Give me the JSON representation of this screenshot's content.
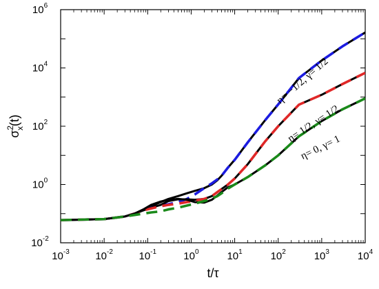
{
  "chart_data": {
    "type": "line",
    "xlabel": "t/τ",
    "ylabel": {
      "base": "σ",
      "sup": "2",
      "sub": "x",
      "suffix": "(t)"
    },
    "x_scale": "log",
    "y_scale": "log",
    "xlim": [
      0.001,
      10000
    ],
    "ylim": [
      0.01,
      1000000
    ],
    "x_ticks": [
      {
        "base": "10",
        "exp": "-3"
      },
      {
        "base": "10",
        "exp": "-2"
      },
      {
        "base": "10",
        "exp": "-1"
      },
      {
        "base": "10",
        "exp": "0"
      },
      {
        "base": "10",
        "exp": "1"
      },
      {
        "base": "10",
        "exp": "2"
      },
      {
        "base": "10",
        "exp": "3"
      },
      {
        "base": "10",
        "exp": "4"
      }
    ],
    "y_ticks": [
      {
        "base": "10",
        "exp": "-2"
      },
      {
        "base": "10",
        "exp": "0"
      },
      {
        "base": "10",
        "exp": "2"
      },
      {
        "base": "10",
        "exp": "4"
      },
      {
        "base": "10",
        "exp": "6"
      }
    ],
    "annotations": [
      {
        "text": "η= −1/2, γ= 1/2",
        "x": 400,
        "y": 3000,
        "angle": -41
      },
      {
        "text": "η= 1/2, γ= 1/2",
        "x": 700,
        "y": 100,
        "angle": -33
      },
      {
        "text": "η= 0, γ= 1",
        "x": 1000,
        "y": 15,
        "angle": -26
      }
    ],
    "series": [
      {
        "style": "solid",
        "color": "#000000",
        "points": [
          [
            0.001,
            0.06
          ],
          [
            0.01,
            0.065
          ],
          [
            0.03,
            0.08
          ],
          [
            0.05,
            0.1
          ],
          [
            0.08,
            0.14
          ],
          [
            0.12,
            0.18
          ],
          [
            0.2,
            0.25
          ],
          [
            0.3,
            0.32
          ],
          [
            0.5,
            0.4
          ],
          [
            0.8,
            0.5
          ],
          [
            1.2,
            0.6
          ],
          [
            2,
            0.75
          ],
          [
            3,
            1.0
          ],
          [
            4,
            1.4
          ],
          [
            5,
            2.0
          ],
          [
            7,
            3.8
          ],
          [
            10,
            7
          ],
          [
            20,
            28
          ],
          [
            50,
            160
          ],
          [
            100,
            560
          ],
          [
            300,
            4500
          ],
          [
            1000,
            18000
          ],
          [
            3000,
            55000
          ],
          [
            10000,
            165000
          ]
        ]
      },
      {
        "style": "dashed",
        "color": "#1c1ce0",
        "points": [
          [
            0.001,
            0.06
          ],
          [
            0.01,
            0.065
          ],
          [
            0.03,
            0.08
          ],
          [
            0.05,
            0.1
          ],
          [
            0.08,
            0.13
          ],
          [
            0.12,
            0.16
          ],
          [
            0.2,
            0.19
          ],
          [
            0.3,
            0.21
          ],
          [
            0.5,
            0.25
          ],
          [
            0.8,
            0.32
          ],
          [
            1.2,
            0.45
          ],
          [
            2,
            0.75
          ],
          [
            3,
            1.1
          ],
          [
            4,
            1.5
          ],
          [
            5,
            2.0
          ],
          [
            7,
            3.8
          ],
          [
            10,
            7
          ],
          [
            20,
            28
          ],
          [
            50,
            160
          ],
          [
            100,
            560
          ],
          [
            300,
            4500
          ],
          [
            1000,
            18000
          ],
          [
            3000,
            55000
          ],
          [
            10000,
            165000
          ]
        ]
      },
      {
        "style": "solid",
        "color": "#000000",
        "points": [
          [
            0.001,
            0.06
          ],
          [
            0.01,
            0.065
          ],
          [
            0.03,
            0.08
          ],
          [
            0.05,
            0.1
          ],
          [
            0.08,
            0.13
          ],
          [
            0.12,
            0.16
          ],
          [
            0.2,
            0.2
          ],
          [
            0.3,
            0.27
          ],
          [
            0.5,
            0.31
          ],
          [
            0.8,
            0.31
          ],
          [
            1.2,
            0.3
          ],
          [
            2,
            0.32
          ],
          [
            3,
            0.4
          ],
          [
            4,
            0.55
          ],
          [
            5,
            0.7
          ],
          [
            7,
            1.0
          ],
          [
            10,
            1.6
          ],
          [
            20,
            5
          ],
          [
            50,
            30
          ],
          [
            100,
            100
          ],
          [
            300,
            550
          ],
          [
            1000,
            1200
          ],
          [
            3000,
            2800
          ],
          [
            10000,
            6800
          ]
        ]
      },
      {
        "style": "dashed",
        "color": "#e02828",
        "points": [
          [
            0.001,
            0.06
          ],
          [
            0.01,
            0.065
          ],
          [
            0.03,
            0.08
          ],
          [
            0.05,
            0.1
          ],
          [
            0.08,
            0.13
          ],
          [
            0.12,
            0.15
          ],
          [
            0.2,
            0.18
          ],
          [
            0.3,
            0.2
          ],
          [
            0.5,
            0.22
          ],
          [
            0.8,
            0.25
          ],
          [
            1.2,
            0.28
          ],
          [
            2,
            0.32
          ],
          [
            3,
            0.4
          ],
          [
            4,
            0.55
          ],
          [
            5,
            0.7
          ],
          [
            7,
            1.0
          ],
          [
            10,
            1.6
          ],
          [
            20,
            5
          ],
          [
            50,
            30
          ],
          [
            100,
            100
          ],
          [
            300,
            550
          ],
          [
            1000,
            1200
          ],
          [
            3000,
            2800
          ],
          [
            10000,
            6800
          ]
        ]
      },
      {
        "style": "solid",
        "color": "#000000",
        "points": [
          [
            0.001,
            0.06
          ],
          [
            0.01,
            0.065
          ],
          [
            0.03,
            0.08
          ],
          [
            0.05,
            0.1
          ],
          [
            0.08,
            0.14
          ],
          [
            0.12,
            0.2
          ],
          [
            0.2,
            0.26
          ],
          [
            0.3,
            0.3
          ],
          [
            0.5,
            0.32
          ],
          [
            0.8,
            0.3
          ],
          [
            1.2,
            0.25
          ],
          [
            2,
            0.24
          ],
          [
            3,
            0.3
          ],
          [
            4,
            0.42
          ],
          [
            5,
            0.55
          ],
          [
            7,
            0.8
          ],
          [
            10,
            1.0
          ],
          [
            20,
            1.8
          ],
          [
            50,
            4.5
          ],
          [
            100,
            10
          ],
          [
            300,
            45
          ],
          [
            1000,
            150
          ],
          [
            3000,
            380
          ],
          [
            10000,
            900
          ]
        ]
      },
      {
        "style": "dashed",
        "color": "#1b8a1b",
        "points": [
          [
            0.001,
            0.06
          ],
          [
            0.01,
            0.065
          ],
          [
            0.03,
            0.08
          ],
          [
            0.05,
            0.09
          ],
          [
            0.08,
            0.1
          ],
          [
            0.12,
            0.11
          ],
          [
            0.2,
            0.12
          ],
          [
            0.3,
            0.14
          ],
          [
            0.5,
            0.16
          ],
          [
            0.8,
            0.19
          ],
          [
            1.2,
            0.22
          ],
          [
            2,
            0.27
          ],
          [
            3,
            0.33
          ],
          [
            4,
            0.4
          ],
          [
            5,
            0.5
          ],
          [
            7,
            0.72
          ],
          [
            10,
            1.0
          ],
          [
            20,
            1.8
          ],
          [
            50,
            4.5
          ],
          [
            100,
            10
          ],
          [
            300,
            45
          ],
          [
            1000,
            150
          ],
          [
            3000,
            380
          ],
          [
            10000,
            900
          ]
        ]
      }
    ]
  }
}
